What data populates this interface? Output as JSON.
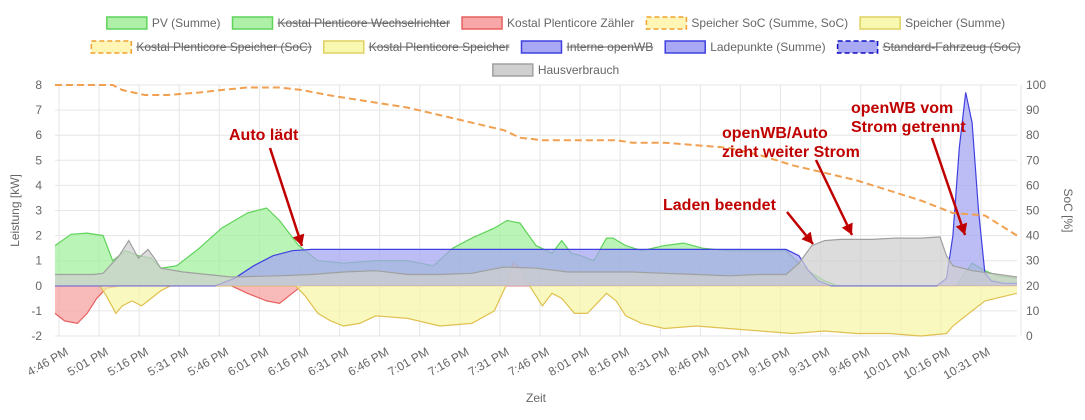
{
  "chart_data": {
    "type": "area",
    "xlabel": "Zeit",
    "ylabel_left": "Leistung [kW]",
    "ylabel_right": "SoC [%]",
    "ylim_left": [
      -2,
      8
    ],
    "ylim_right": [
      0,
      100
    ],
    "x_ticks": [
      "4:46 PM",
      "5:01 PM",
      "5:16 PM",
      "5:31 PM",
      "5:46 PM",
      "6:01 PM",
      "6:16 PM",
      "6:31 PM",
      "6:46 PM",
      "7:01 PM",
      "7:16 PM",
      "7:31 PM",
      "7:46 PM",
      "8:01 PM",
      "8:16 PM",
      "8:31 PM",
      "8:46 PM",
      "9:01 PM",
      "9:16 PM",
      "9:31 PM",
      "9:46 PM",
      "10:01 PM",
      "10:16 PM",
      "10:31 PM"
    ],
    "y_ticks_left": [
      "-2",
      "-1",
      "0",
      "1",
      "2",
      "3",
      "4",
      "5",
      "6",
      "7",
      "8"
    ],
    "y_ticks_right": [
      "0",
      "10",
      "20",
      "30",
      "40",
      "50",
      "60",
      "70",
      "80",
      "90",
      "100"
    ],
    "grid": true,
    "legend_position": "top",
    "legend": [
      {
        "label": "PV (Summe)",
        "fill": "#aef0a8",
        "stroke": "#5fd35a",
        "dashed": false,
        "hidden": false
      },
      {
        "label": "Kostal Plenticore Wechselrichter",
        "fill": "#aef0a8",
        "stroke": "#5fd35a",
        "dashed": false,
        "hidden": true
      },
      {
        "label": "Kostal Plenticore Zähler",
        "fill": "#f7a7a7",
        "stroke": "#e86060",
        "dashed": false,
        "hidden": false
      },
      {
        "label": "Speicher SoC (Summe, SoC)",
        "fill": "#fff6b5",
        "stroke": "#f0a030",
        "dashed": true,
        "hidden": false
      },
      {
        "label": "Speicher (Summe)",
        "fill": "#f8f8b0",
        "stroke": "#e0d060",
        "dashed": false,
        "hidden": false
      },
      {
        "label": "Kostal Plenticore Speicher (SoC)",
        "fill": "#fff6b5",
        "stroke": "#f0a030",
        "dashed": true,
        "hidden": true
      },
      {
        "label": "Kostal Plenticore Speicher",
        "fill": "#f8f8b0",
        "stroke": "#e0d060",
        "dashed": false,
        "hidden": true
      },
      {
        "label": "Interne openWB",
        "fill": "#a8a8f4",
        "stroke": "#4040e0",
        "dashed": false,
        "hidden": true
      },
      {
        "label": "Ladepunkte (Summe)",
        "fill": "#a8a8f4",
        "stroke": "#4040e0",
        "dashed": false,
        "hidden": false
      },
      {
        "label": "Standard-Fahrzeug (SoC)",
        "fill": "#a8a8f4",
        "stroke": "#1010c0",
        "dashed": true,
        "hidden": true
      },
      {
        "label": "Hausverbrauch",
        "fill": "#cfcfcf",
        "stroke": "#a0a0a0",
        "dashed": false,
        "hidden": false
      }
    ],
    "series": [
      {
        "name": "PV (Summe)",
        "axis": "left",
        "fill": "#9ff09a",
        "stroke": "#5fd35a",
        "points": [
          [
            0,
            1.6
          ],
          [
            5,
            2.05
          ],
          [
            10,
            2.1
          ],
          [
            15,
            2.0
          ],
          [
            18,
            1.0
          ],
          [
            22,
            1.4
          ],
          [
            26,
            1.2
          ],
          [
            30,
            1.1
          ],
          [
            33,
            0.7
          ],
          [
            38,
            0.8
          ],
          [
            45,
            1.5
          ],
          [
            52,
            2.3
          ],
          [
            60,
            2.9
          ],
          [
            66,
            3.1
          ],
          [
            70,
            2.6
          ],
          [
            76,
            1.6
          ],
          [
            82,
            1.0
          ],
          [
            90,
            0.9
          ],
          [
            100,
            1.0
          ],
          [
            110,
            1.0
          ],
          [
            118,
            0.8
          ],
          [
            124,
            1.5
          ],
          [
            130,
            1.9
          ],
          [
            137,
            2.3
          ],
          [
            141,
            2.6
          ],
          [
            145,
            2.5
          ],
          [
            150,
            1.6
          ],
          [
            155,
            1.3
          ],
          [
            158,
            1.8
          ],
          [
            161,
            1.3
          ],
          [
            164,
            1.2
          ],
          [
            168,
            1.0
          ],
          [
            172,
            1.9
          ],
          [
            174,
            1.9
          ],
          [
            178,
            1.6
          ],
          [
            183,
            1.4
          ],
          [
            190,
            1.6
          ],
          [
            196,
            1.7
          ],
          [
            202,
            1.5
          ],
          [
            210,
            1.4
          ],
          [
            220,
            1.4
          ],
          [
            228,
            1.4
          ],
          [
            232,
            0.9
          ],
          [
            236,
            0.5
          ],
          [
            240,
            0.2
          ],
          [
            244,
            0.0
          ],
          [
            248,
            0.0
          ],
          [
            275,
            0.0
          ],
          [
            281,
            0.0
          ],
          [
            286,
            0.9
          ],
          [
            290,
            0.6
          ],
          [
            294,
            0.4
          ],
          [
            300,
            0.3
          ]
        ]
      },
      {
        "name": "Kostal Plenticore Zähler",
        "axis": "left",
        "fill": "#f7a0a0",
        "stroke": "#e86060",
        "points": [
          [
            0,
            -1.1
          ],
          [
            3,
            -1.4
          ],
          [
            7,
            -1.5
          ],
          [
            10,
            -1.1
          ],
          [
            13,
            -0.5
          ],
          [
            16,
            -0.1
          ],
          [
            20,
            0
          ],
          [
            55,
            0
          ],
          [
            60,
            -0.3
          ],
          [
            66,
            -0.6
          ],
          [
            70,
            -0.7
          ],
          [
            74,
            -0.3
          ],
          [
            77,
            0
          ],
          [
            300,
            0
          ]
        ]
      },
      {
        "name": "Speicher (Summe)",
        "axis": "left",
        "fill": "#f6f6a6",
        "stroke": "#e0c050",
        "points": [
          [
            0,
            0
          ],
          [
            14,
            0
          ],
          [
            16,
            -0.4
          ],
          [
            19,
            -1.1
          ],
          [
            21,
            -0.8
          ],
          [
            24,
            -0.6
          ],
          [
            27,
            -0.8
          ],
          [
            30,
            -0.5
          ],
          [
            33,
            -0.2
          ],
          [
            36,
            0
          ],
          [
            75,
            0
          ],
          [
            78,
            -0.4
          ],
          [
            82,
            -1.1
          ],
          [
            86,
            -1.4
          ],
          [
            90,
            -1.6
          ],
          [
            95,
            -1.5
          ],
          [
            100,
            -1.2
          ],
          [
            110,
            -1.3
          ],
          [
            120,
            -1.6
          ],
          [
            130,
            -1.5
          ],
          [
            137,
            -1.0
          ],
          [
            141,
            0.1
          ],
          [
            143,
            0.9
          ],
          [
            145,
            0.7
          ],
          [
            148,
            0.0
          ],
          [
            152,
            -0.8
          ],
          [
            155,
            -0.3
          ],
          [
            158,
            -0.5
          ],
          [
            162,
            -1.1
          ],
          [
            166,
            -1.1
          ],
          [
            169,
            -0.7
          ],
          [
            172,
            -0.3
          ],
          [
            175,
            -0.6
          ],
          [
            178,
            -1.2
          ],
          [
            183,
            -1.5
          ],
          [
            190,
            -1.7
          ],
          [
            200,
            -1.6
          ],
          [
            210,
            -1.7
          ],
          [
            220,
            -1.8
          ],
          [
            230,
            -1.9
          ],
          [
            240,
            -1.8
          ],
          [
            250,
            -1.9
          ],
          [
            260,
            -1.9
          ],
          [
            270,
            -2.0
          ],
          [
            278,
            -1.9
          ],
          [
            280,
            -1.6
          ],
          [
            284,
            -1.2
          ],
          [
            290,
            -0.6
          ],
          [
            300,
            -0.3
          ]
        ]
      },
      {
        "name": "Ladepunkte (Summe)",
        "axis": "left",
        "fill": "#a4a4f2",
        "stroke": "#4040e0",
        "points": [
          [
            0,
            0
          ],
          [
            50,
            0
          ],
          [
            56,
            0.3
          ],
          [
            62,
            0.8
          ],
          [
            68,
            1.2
          ],
          [
            74,
            1.4
          ],
          [
            80,
            1.45
          ],
          [
            90,
            1.45
          ],
          [
            100,
            1.45
          ],
          [
            110,
            1.45
          ],
          [
            120,
            1.45
          ],
          [
            130,
            1.45
          ],
          [
            140,
            1.45
          ],
          [
            150,
            1.45
          ],
          [
            160,
            1.45
          ],
          [
            170,
            1.45
          ],
          [
            180,
            1.45
          ],
          [
            190,
            1.45
          ],
          [
            200,
            1.45
          ],
          [
            210,
            1.45
          ],
          [
            220,
            1.45
          ],
          [
            228,
            1.45
          ],
          [
            232,
            1.2
          ],
          [
            235,
            0.6
          ],
          [
            238,
            0.2
          ],
          [
            242,
            0.0
          ],
          [
            275,
            0.0
          ],
          [
            278,
            0.3
          ],
          [
            280,
            2.0
          ],
          [
            282,
            5.5
          ],
          [
            284,
            7.7
          ],
          [
            286,
            6.5
          ],
          [
            288,
            3.0
          ],
          [
            290,
            0.5
          ],
          [
            292,
            0.2
          ],
          [
            296,
            0.1
          ],
          [
            300,
            0.1
          ]
        ]
      },
      {
        "name": "Hausverbrauch",
        "axis": "left",
        "fill": "#cfcfcf",
        "stroke": "#a0a0a0",
        "points": [
          [
            0,
            0.45
          ],
          [
            12,
            0.45
          ],
          [
            15,
            0.5
          ],
          [
            20,
            1.2
          ],
          [
            23,
            1.8
          ],
          [
            26,
            1.1
          ],
          [
            29,
            1.45
          ],
          [
            31,
            1.1
          ],
          [
            33,
            0.7
          ],
          [
            40,
            0.55
          ],
          [
            55,
            0.35
          ],
          [
            70,
            0.4
          ],
          [
            80,
            0.45
          ],
          [
            90,
            0.55
          ],
          [
            100,
            0.6
          ],
          [
            110,
            0.45
          ],
          [
            120,
            0.45
          ],
          [
            130,
            0.5
          ],
          [
            140,
            0.75
          ],
          [
            150,
            0.7
          ],
          [
            160,
            0.55
          ],
          [
            170,
            0.55
          ],
          [
            180,
            0.55
          ],
          [
            190,
            0.5
          ],
          [
            200,
            0.45
          ],
          [
            210,
            0.4
          ],
          [
            220,
            0.45
          ],
          [
            228,
            0.45
          ],
          [
            232,
            0.9
          ],
          [
            236,
            1.6
          ],
          [
            240,
            1.8
          ],
          [
            245,
            1.85
          ],
          [
            255,
            1.85
          ],
          [
            262,
            1.9
          ],
          [
            270,
            1.9
          ],
          [
            276,
            1.95
          ],
          [
            278,
            1.2
          ],
          [
            280,
            0.8
          ],
          [
            286,
            0.6
          ],
          [
            292,
            0.5
          ],
          [
            300,
            0.35
          ]
        ]
      },
      {
        "name": "Speicher SoC (Summe, SoC)",
        "axis": "right",
        "type": "line",
        "dashed": true,
        "stroke": "#f0a050",
        "points": [
          [
            0,
            100
          ],
          [
            8,
            100
          ],
          [
            18,
            100
          ],
          [
            21,
            98
          ],
          [
            28,
            96
          ],
          [
            35,
            96
          ],
          [
            45,
            97
          ],
          [
            52,
            98
          ],
          [
            60,
            99
          ],
          [
            70,
            99
          ],
          [
            77,
            98
          ],
          [
            85,
            96
          ],
          [
            90,
            95
          ],
          [
            100,
            93
          ],
          [
            110,
            91
          ],
          [
            120,
            88
          ],
          [
            130,
            85
          ],
          [
            140,
            82
          ],
          [
            145,
            79
          ],
          [
            152,
            78
          ],
          [
            160,
            78
          ],
          [
            168,
            78
          ],
          [
            175,
            78
          ],
          [
            180,
            77
          ],
          [
            190,
            77
          ],
          [
            200,
            76
          ],
          [
            210,
            75
          ],
          [
            220,
            72
          ],
          [
            230,
            68
          ],
          [
            240,
            65
          ],
          [
            250,
            62
          ],
          [
            260,
            58
          ],
          [
            270,
            54
          ],
          [
            280,
            49
          ],
          [
            290,
            48
          ],
          [
            300,
            40
          ]
        ]
      }
    ],
    "annotations": [
      {
        "text_lines": [
          "Auto lädt"
        ]
      },
      {
        "text_lines": [
          "openWB/Auto",
          "zieht weiter Strom"
        ]
      },
      {
        "text_lines": [
          "Laden beendet"
        ]
      },
      {
        "text_lines": [
          "openWB vom",
          "Strom getrennt"
        ]
      }
    ]
  }
}
